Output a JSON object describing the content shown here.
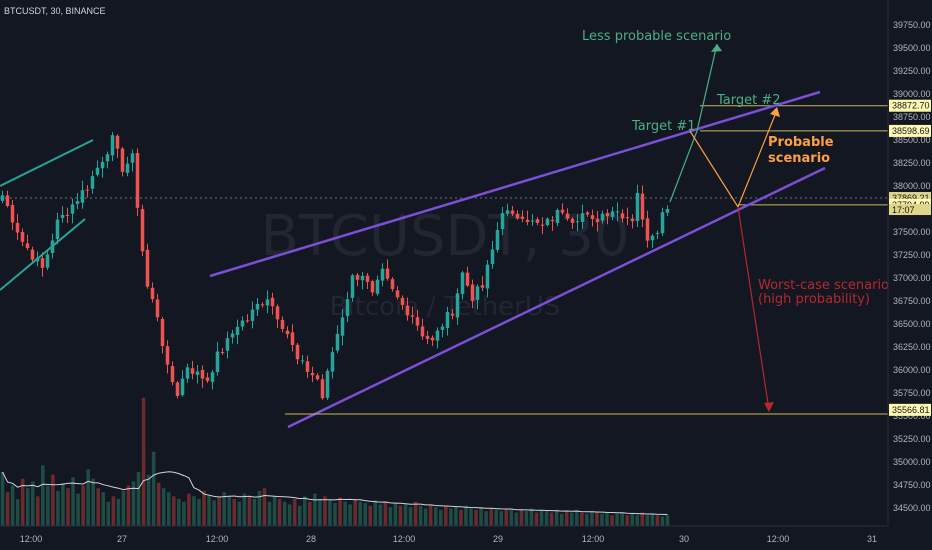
{
  "header": {
    "title": "BTCUSDT, 30, BINANCE"
  },
  "watermark": {
    "symbol": "BTCUSDT, 30",
    "name": "Bitcoin / TetherUS"
  },
  "colors": {
    "background": "#131722",
    "up": "#26a69a",
    "down": "#ef5350",
    "channel": "#7b4fd6",
    "green_anno": "#4caf84",
    "orange_anno": "#ff9f43",
    "red_anno": "#b5282e",
    "level_line": "#c9b458",
    "price_tag_bg": "#fff9b0"
  },
  "chart_data": {
    "type": "candlestick",
    "title": "BTCUSDT, 30, BINANCE",
    "ylim": [
      34300,
      40000
    ],
    "y_ticks": [
      34500,
      34750,
      35000,
      35250,
      35500,
      35750,
      36000,
      36250,
      36500,
      36750,
      37000,
      37250,
      37500,
      37750,
      38000,
      38250,
      38500,
      38750,
      39000,
      39250,
      39500,
      39750
    ],
    "y_tick_labels": [
      "34500.00",
      "34750.00",
      "35000.00",
      "35250.00",
      "35500.00",
      "35750.00",
      "36000.00",
      "36250.00",
      "36500.00",
      "36750.00",
      "37000.00",
      "37250.00",
      "37500.00",
      "37750.00",
      "38000.00",
      "38250.00",
      "38500.00",
      "38750.00",
      "39000.00",
      "39250.00",
      "39500.00",
      "39750.00"
    ],
    "x_tick_labels": [
      "12:00",
      "27",
      "12:00",
      "28",
      "12:00",
      "29",
      "12:00",
      "30",
      "12:00",
      "31"
    ],
    "close_path": [
      [
        0,
        37900
      ],
      [
        4,
        37400
      ],
      [
        8,
        37100
      ],
      [
        11,
        37600
      ],
      [
        14,
        37800
      ],
      [
        17,
        38000
      ],
      [
        20,
        38300
      ],
      [
        22,
        38500
      ],
      [
        24,
        38200
      ],
      [
        26,
        38300
      ],
      [
        27,
        37800
      ],
      [
        28,
        37300
      ],
      [
        29,
        36900
      ],
      [
        31,
        36600
      ],
      [
        33,
        36000
      ],
      [
        35,
        35750
      ],
      [
        37,
        36050
      ],
      [
        39,
        35950
      ],
      [
        41,
        35900
      ],
      [
        43,
        36150
      ],
      [
        45,
        36300
      ],
      [
        47,
        36500
      ],
      [
        49,
        36550
      ],
      [
        51,
        36700
      ],
      [
        53,
        36800
      ],
      [
        55,
        36600
      ],
      [
        57,
        36400
      ],
      [
        59,
        36100
      ],
      [
        61,
        36000
      ],
      [
        63,
        35900
      ],
      [
        64,
        35700
      ],
      [
        66,
        36200
      ],
      [
        68,
        36600
      ],
      [
        70,
        37000
      ],
      [
        72,
        37050
      ],
      [
        74,
        36800
      ],
      [
        76,
        37050
      ],
      [
        78,
        36850
      ],
      [
        80,
        36700
      ],
      [
        82,
        36600
      ],
      [
        84,
        36400
      ],
      [
        86,
        36300
      ],
      [
        88,
        36500
      ],
      [
        90,
        36650
      ],
      [
        92,
        37050
      ],
      [
        94,
        36800
      ],
      [
        96,
        36900
      ],
      [
        98,
        37300
      ],
      [
        100,
        37750
      ],
      [
        102,
        37650
      ],
      [
        104,
        37700
      ],
      [
        106,
        37600
      ],
      [
        108,
        37550
      ],
      [
        110,
        37650
      ],
      [
        112,
        37750
      ],
      [
        114,
        37650
      ],
      [
        116,
        37700
      ],
      [
        118,
        37600
      ],
      [
        120,
        37700
      ],
      [
        122,
        37750
      ],
      [
        124,
        37700
      ],
      [
        126,
        37650
      ],
      [
        127,
        37950
      ],
      [
        128,
        37600
      ],
      [
        129,
        37450
      ],
      [
        130,
        37500
      ],
      [
        131,
        37550
      ],
      [
        132,
        37700
      ],
      [
        133,
        37800
      ]
    ],
    "volume": [
      40,
      25,
      30,
      20,
      35,
      28,
      33,
      22,
      45,
      30,
      38,
      26,
      32,
      28,
      36,
      24,
      30,
      42,
      35,
      28,
      25,
      18,
      22,
      20,
      26,
      30,
      33,
      40,
      95,
      38,
      55,
      32,
      28,
      25,
      22,
      20,
      18,
      24,
      22,
      20,
      26,
      23,
      19,
      21,
      25,
      22,
      20,
      18,
      24,
      22,
      20,
      26,
      28,
      18,
      22,
      20,
      18,
      16,
      20,
      15,
      22,
      18,
      24,
      20,
      22,
      19,
      17,
      21,
      18,
      16,
      20,
      18,
      17,
      15,
      19,
      16,
      18,
      14,
      17,
      15,
      16,
      14,
      18,
      15,
      13,
      16,
      14,
      12,
      15,
      13,
      14,
      12,
      15,
      13,
      12,
      14,
      11,
      13,
      12,
      11,
      13,
      12,
      10,
      12,
      11,
      13,
      10,
      12,
      11,
      10,
      12,
      9,
      11,
      10,
      12,
      10,
      9,
      11,
      10,
      9,
      10,
      8,
      9,
      10,
      8,
      9,
      8,
      10,
      8,
      9,
      8,
      7,
      8
    ],
    "volume_ma_label": "",
    "price_tags": [
      {
        "price": 38872.7,
        "label": "38872.70"
      },
      {
        "price": 38598.69,
        "label": "38598.69"
      },
      {
        "price": 37869.21,
        "label": "37869.21"
      },
      {
        "price": 37794.99,
        "label": "37794.99"
      },
      {
        "price": 35566.81,
        "label": "35566.81"
      }
    ],
    "countdown": "17:07",
    "annotations": [
      {
        "text": "Less probable scenario",
        "color": "green"
      },
      {
        "text": "Target #2",
        "color": "green"
      },
      {
        "text": "Target #1",
        "color": "green"
      },
      {
        "text": "Probable",
        "color": "orange"
      },
      {
        "text": "scenario",
        "color": "orange"
      },
      {
        "text": "Worst-case scenario",
        "color": "red"
      },
      {
        "text": "(high probability)",
        "color": "red"
      }
    ],
    "grid": false
  }
}
